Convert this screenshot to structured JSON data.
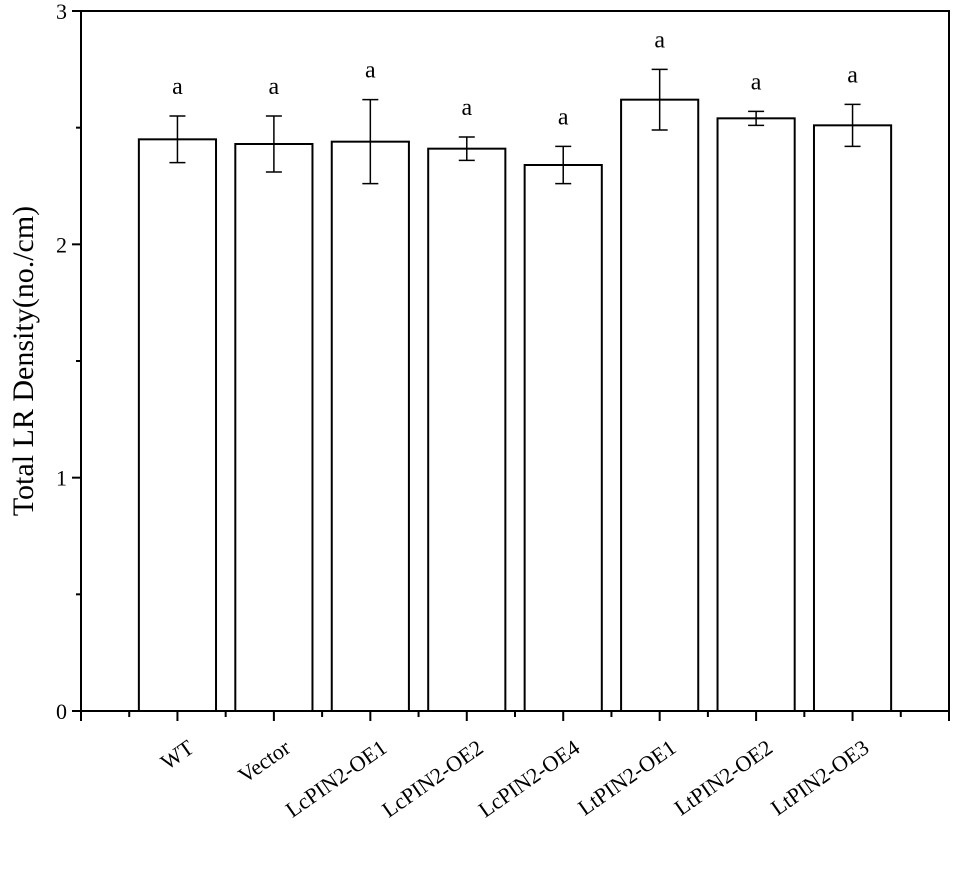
{
  "chart_data": {
    "type": "bar",
    "y_label": "Total LR Density(no./cm)",
    "categories": [
      "WT",
      "Vector",
      "LcPIN2-OE1",
      "LcPIN2-OE2",
      "LcPIN2-OE4",
      "LtPIN2-OE1",
      "LtPIN2-OE2",
      "LtPIN2-OE3"
    ],
    "values": [
      2.45,
      2.43,
      2.44,
      2.41,
      2.34,
      2.62,
      2.54,
      2.51
    ],
    "errors": [
      0.1,
      0.12,
      0.18,
      0.05,
      0.08,
      0.13,
      0.03,
      0.09
    ],
    "annotations": [
      "a",
      "a",
      "a",
      "a",
      "a",
      "a",
      "a",
      "a"
    ],
    "color": "#ffffff",
    "ylim": [
      0,
      3
    ],
    "yticks": [
      0,
      1,
      2,
      3
    ],
    "yticks_minor": [
      0.5,
      1.5,
      2.5
    ]
  }
}
